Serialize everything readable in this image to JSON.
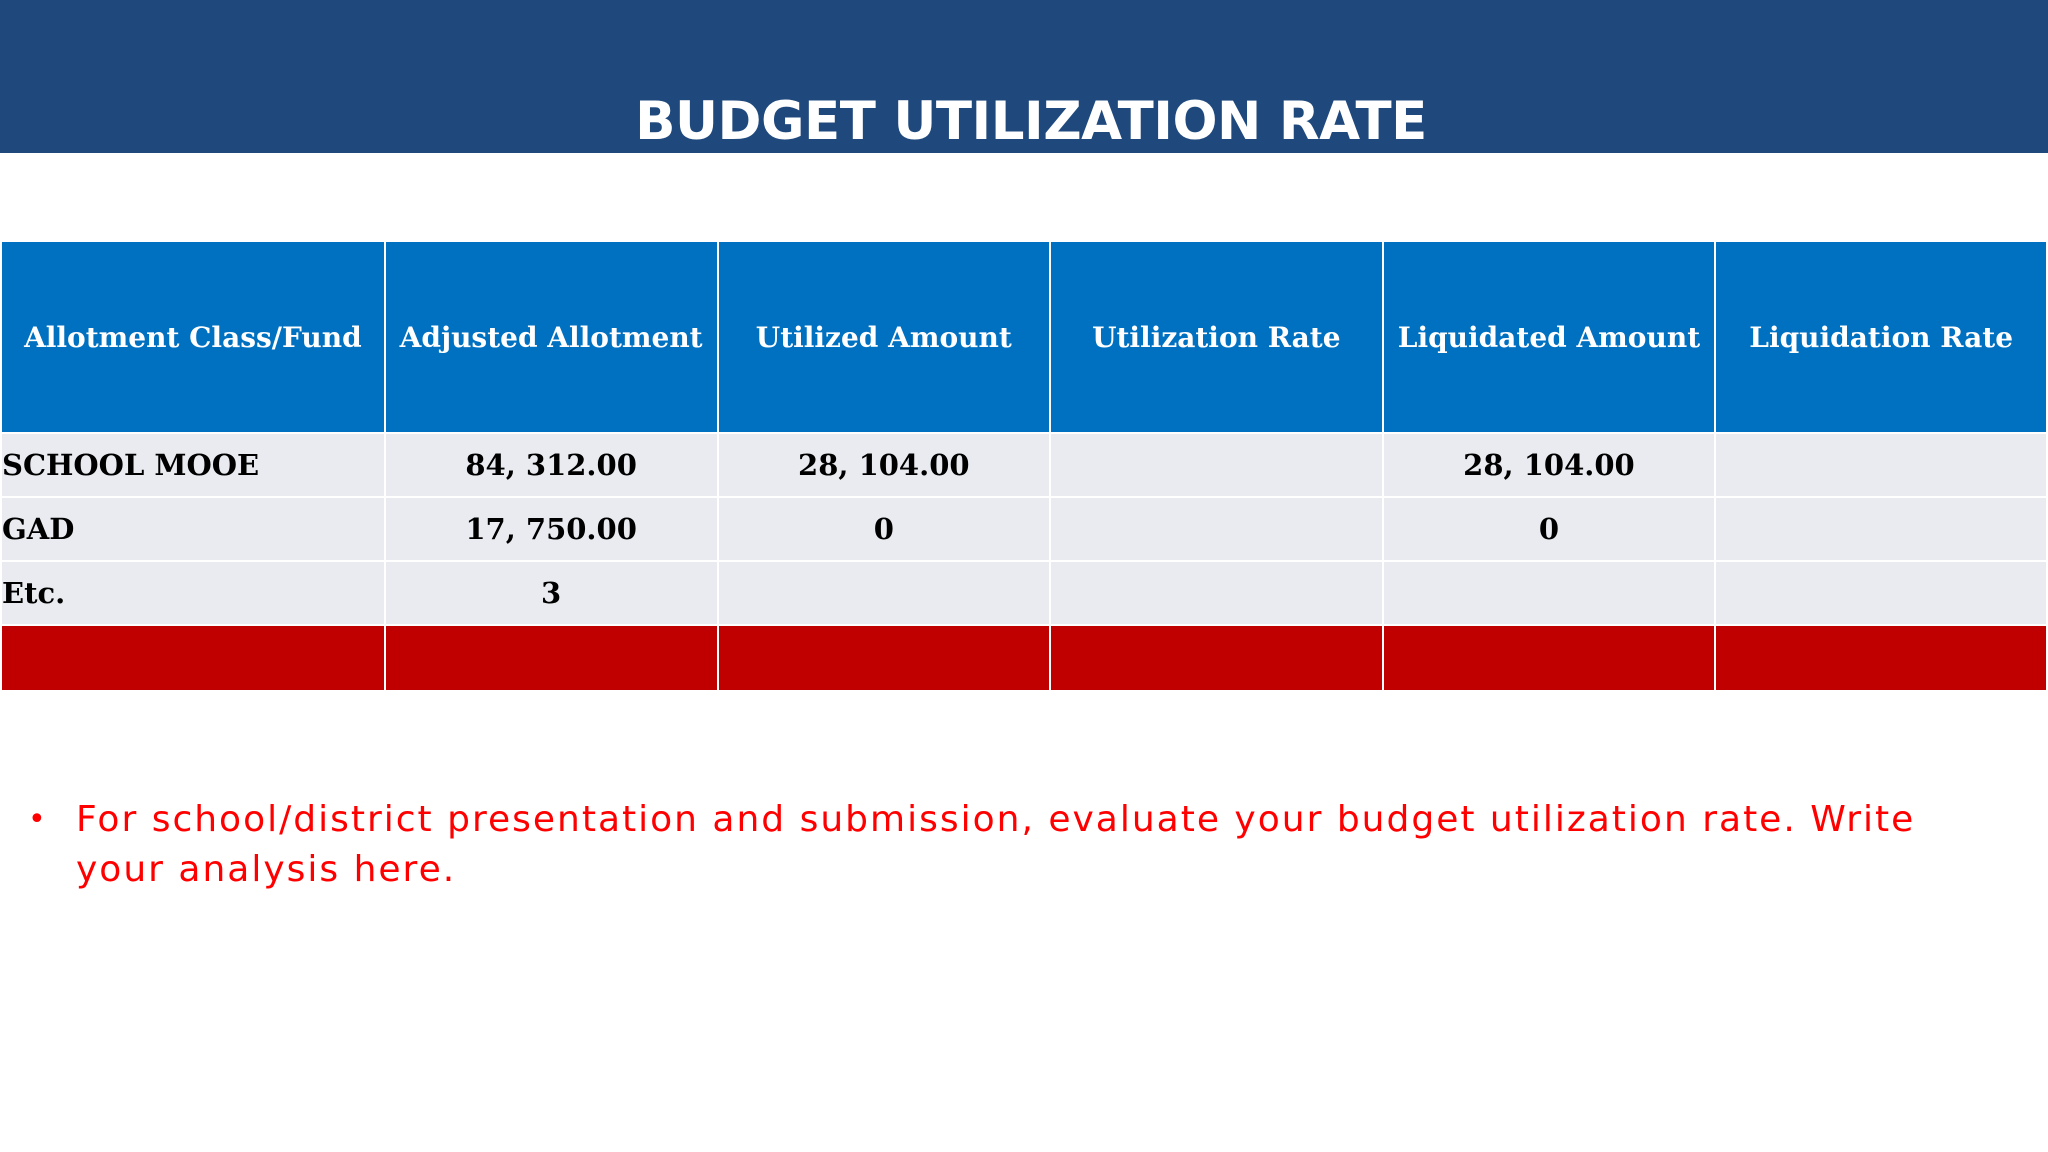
{
  "slide": {
    "title": "BUDGET UTILIZATION RATE",
    "colors": {
      "title_bar": "#1f497d",
      "header": "#0070c0",
      "row": "#e9ebf0",
      "total_row": "#c00000",
      "note_text": "#ff0000"
    }
  },
  "table": {
    "headers": [
      "Allotment Class/Fund",
      "Adjusted Allotment",
      "Utilized Amount",
      "Utilization Rate",
      "Liquidated Amount",
      "Liquidation Rate"
    ],
    "rows": [
      [
        "SCHOOL MOOE",
        "84, 312.00",
        "28, 104.00",
        "",
        "28, 104.00",
        ""
      ],
      [
        "GAD",
        "17, 750.00",
        "0",
        "",
        "0",
        ""
      ],
      [
        "Etc.",
        "3",
        "",
        "",
        "",
        ""
      ]
    ],
    "total_row": [
      "",
      "",
      "",
      "",
      "",
      ""
    ]
  },
  "notes": [
    {
      "bullet": "•",
      "text": "For school/district presentation and submission, evaluate your budget utilization rate. Write your analysis here."
    }
  ]
}
